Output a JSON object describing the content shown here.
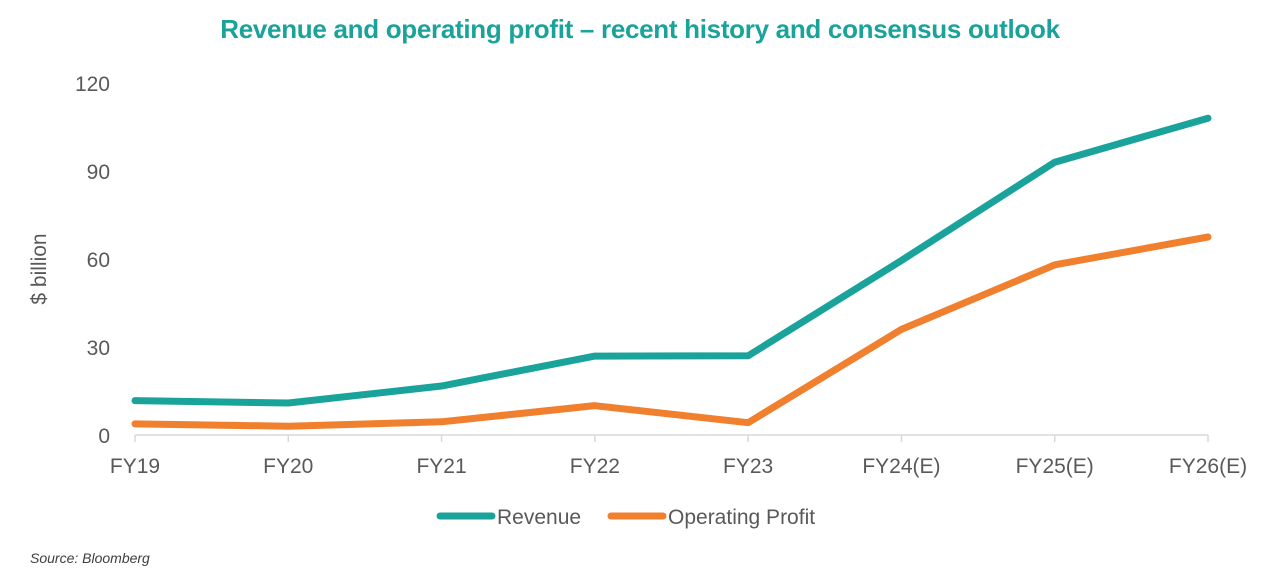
{
  "chart_data": {
    "type": "line",
    "title": "Revenue and operating profit – recent history and consensus outlook",
    "ylabel": "$ billion",
    "xlabel": "",
    "categories": [
      "FY19",
      "FY20",
      "FY21",
      "FY22",
      "FY23",
      "FY24(E)",
      "FY25(E)",
      "FY26(E)"
    ],
    "ylim": [
      0,
      120
    ],
    "yticks": [
      0,
      30,
      60,
      90,
      120
    ],
    "series": [
      {
        "name": "Revenue",
        "color": "#1aa39a",
        "values": [
          11.7,
          10.9,
          16.7,
          26.9,
          27.0,
          59.5,
          93.0,
          108.0
        ]
      },
      {
        "name": "Operating Profit",
        "color": "#f07f2e",
        "values": [
          3.8,
          3.0,
          4.5,
          10.0,
          4.2,
          36.0,
          58.0,
          67.5
        ]
      }
    ],
    "grid": false,
    "legend_position": "bottom"
  },
  "source": "Source: Bloomberg"
}
